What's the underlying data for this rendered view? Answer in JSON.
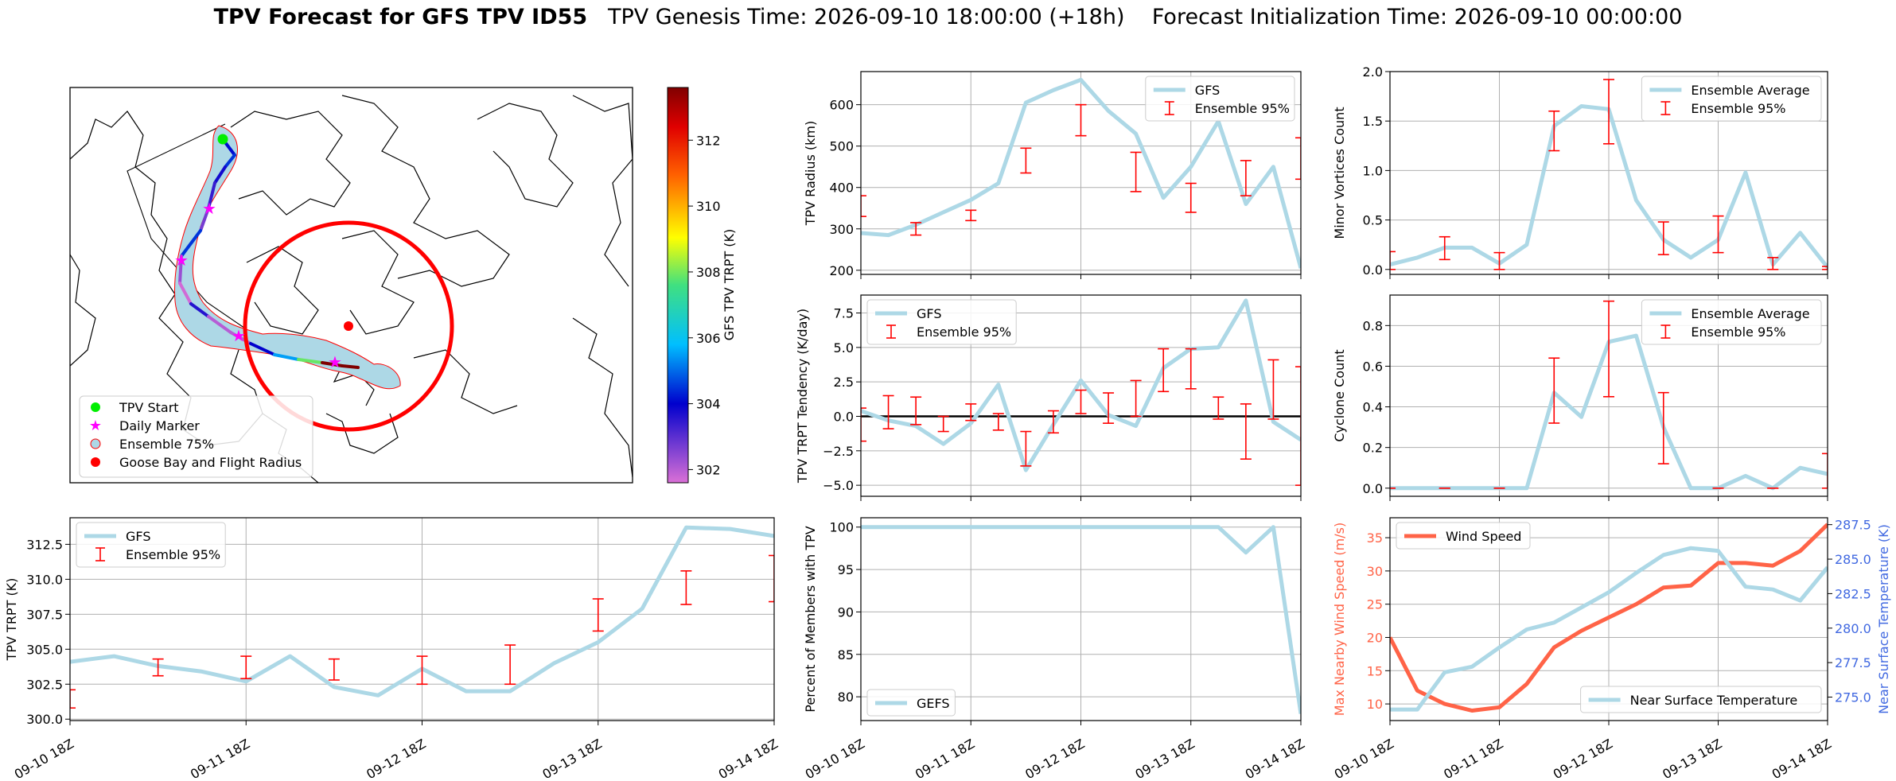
{
  "header": {
    "title_bold": "TPV Forecast for GFS TPV ID55",
    "genesis": "TPV Genesis Time: 2026-09-10 18:00:00 (+18h)",
    "init": "Forecast Initialization Time: 2026-09-10 00:00:00"
  },
  "colors": {
    "line": "#add8e6",
    "error": "#ff0000",
    "wind": "#ff6347",
    "temperature": "#4169e1",
    "zero_line": "#000000",
    "ensemble_fill": "#add8e6",
    "ensemble_edge": "#ff0000",
    "start_marker": "#00ff00",
    "daily_marker": "#ff00ff",
    "goose_bay": "#ff0000"
  },
  "time_ticks": [
    "09-10 18Z",
    "09-11 18Z",
    "09-12 18Z",
    "09-13 18Z",
    "09-14 18Z"
  ],
  "chart_data": [
    {
      "id": "map",
      "type": "map",
      "legend": [
        "TPV Start",
        "Daily Marker",
        "Ensemble 75%",
        "Goose Bay and Flight Radius"
      ],
      "colorbar": {
        "label": "GFS TPV TRPT (K)",
        "ticks": [
          302,
          304,
          306,
          308,
          310,
          312
        ],
        "range": [
          301.6,
          313.6
        ]
      },
      "track_trpt": [
        304.1,
        304.5,
        303.8,
        303.4,
        302.7,
        304.5,
        302.3,
        301.7,
        303.6,
        302.0,
        302.0,
        304.0,
        305.5,
        307.9,
        313.7,
        313.6,
        313.1
      ]
    },
    {
      "id": "radius",
      "type": "line",
      "ylabel": "TPV Radius (km)",
      "ylim": [
        190,
        680
      ],
      "yticks": [
        200,
        300,
        400,
        500,
        600
      ],
      "legend": [
        "GFS",
        "Ensemble 95%"
      ],
      "legend_position": "top-right",
      "series": [
        {
          "name": "GFS",
          "values": [
            290,
            285,
            310,
            340,
            370,
            410,
            605,
            635,
            660,
            585,
            530,
            375,
            450,
            560,
            360,
            450,
            205
          ]
        }
      ],
      "error_bars": [
        {
          "i": 0,
          "lo": 330,
          "hi": 380
        },
        {
          "i": 2,
          "lo": 285,
          "hi": 315
        },
        {
          "i": 4,
          "lo": 320,
          "hi": 345
        },
        {
          "i": 6,
          "lo": 435,
          "hi": 495
        },
        {
          "i": 8,
          "lo": 525,
          "hi": 600
        },
        {
          "i": 10,
          "lo": 390,
          "hi": 485
        },
        {
          "i": 12,
          "lo": 340,
          "hi": 410
        },
        {
          "i": 14,
          "lo": 380,
          "hi": 465
        },
        {
          "i": 16,
          "lo": 420,
          "hi": 520
        }
      ]
    },
    {
      "id": "minor",
      "type": "line",
      "ylabel": "Minor Vortices Count",
      "ylim": [
        -0.05,
        2.0
      ],
      "yticks": [
        "0.0",
        "0.5",
        "1.0",
        "1.5",
        "2.0"
      ],
      "legend": [
        "Ensemble Average",
        "Ensemble 95%"
      ],
      "legend_position": "top-right",
      "series": [
        {
          "name": "Ensemble Average",
          "values": [
            0.05,
            0.12,
            0.22,
            0.22,
            0.06,
            0.25,
            1.45,
            1.65,
            1.62,
            0.7,
            0.3,
            0.12,
            0.3,
            0.98,
            0.05,
            0.37,
            0.02
          ]
        }
      ],
      "error_bars": [
        {
          "i": 0,
          "lo": 0.0,
          "hi": 0.18
        },
        {
          "i": 2,
          "lo": 0.1,
          "hi": 0.33
        },
        {
          "i": 4,
          "lo": 0.0,
          "hi": 0.17
        },
        {
          "i": 6,
          "lo": 1.2,
          "hi": 1.6
        },
        {
          "i": 8,
          "lo": 1.27,
          "hi": 1.92
        },
        {
          "i": 10,
          "lo": 0.15,
          "hi": 0.48
        },
        {
          "i": 12,
          "lo": 0.17,
          "hi": 0.54
        },
        {
          "i": 14,
          "lo": 0.0,
          "hi": 0.12
        },
        {
          "i": 16,
          "lo": 0.0,
          "hi": 0.03
        }
      ]
    },
    {
      "id": "tendency",
      "type": "line",
      "ylabel": "TPV TRPT Tendency (K/day)",
      "ylim": [
        -5.8,
        8.8
      ],
      "yticks": [
        "−5.0",
        "−2.5",
        "0.0",
        "2.5",
        "5.0",
        "7.5"
      ],
      "legend": [
        "GFS",
        "Ensemble 95%"
      ],
      "legend_position": "top-left",
      "series": [
        {
          "name": "GFS",
          "values": [
            0.4,
            -0.3,
            -0.7,
            -2.0,
            -0.5,
            2.3,
            -3.9,
            -0.6,
            2.6,
            0.1,
            -0.7,
            3.5,
            4.9,
            5.0,
            8.4,
            -0.4,
            -1.7
          ]
        }
      ],
      "error_bars": [
        {
          "i": 0,
          "lo": -1.8,
          "hi": 0.6
        },
        {
          "i": 1,
          "lo": -0.9,
          "hi": 1.5
        },
        {
          "i": 2,
          "lo": -0.6,
          "hi": 1.4
        },
        {
          "i": 3,
          "lo": -1.1,
          "hi": 0.0
        },
        {
          "i": 4,
          "lo": -0.3,
          "hi": 0.9
        },
        {
          "i": 5,
          "lo": -1.0,
          "hi": 0.2
        },
        {
          "i": 6,
          "lo": -3.6,
          "hi": -1.1
        },
        {
          "i": 7,
          "lo": -1.2,
          "hi": 0.4
        },
        {
          "i": 8,
          "lo": 0.2,
          "hi": 1.9
        },
        {
          "i": 9,
          "lo": -0.5,
          "hi": 1.7
        },
        {
          "i": 10,
          "lo": 0.0,
          "hi": 2.6
        },
        {
          "i": 11,
          "lo": 1.8,
          "hi": 4.9
        },
        {
          "i": 12,
          "lo": 2.0,
          "hi": 4.9
        },
        {
          "i": 13,
          "lo": -0.2,
          "hi": 1.4
        },
        {
          "i": 14,
          "lo": -3.1,
          "hi": 0.9
        },
        {
          "i": 15,
          "lo": -0.2,
          "hi": 4.1
        },
        {
          "i": 16,
          "lo": -5.0,
          "hi": 3.6
        }
      ]
    },
    {
      "id": "cyclone",
      "type": "line",
      "ylabel": "Cyclone Count",
      "ylim": [
        -0.04,
        0.95
      ],
      "yticks": [
        "0.0",
        "0.2",
        "0.4",
        "0.6",
        "0.8"
      ],
      "legend": [
        "Ensemble Average",
        "Ensemble 95%"
      ],
      "legend_position": "top-right",
      "series": [
        {
          "name": "Ensemble Average",
          "values": [
            0,
            0,
            0,
            0,
            0,
            0,
            0.47,
            0.35,
            0.72,
            0.75,
            0.3,
            0,
            0,
            0.06,
            0,
            0.1,
            0.07
          ]
        }
      ],
      "error_bars": [
        {
          "i": 0,
          "lo": 0.0,
          "hi": 0.0
        },
        {
          "i": 2,
          "lo": 0.0,
          "hi": 0.0
        },
        {
          "i": 4,
          "lo": 0.0,
          "hi": 0.0
        },
        {
          "i": 6,
          "lo": 0.32,
          "hi": 0.64
        },
        {
          "i": 8,
          "lo": 0.45,
          "hi": 0.92
        },
        {
          "i": 10,
          "lo": 0.12,
          "hi": 0.47
        },
        {
          "i": 12,
          "lo": 0.0,
          "hi": 0.0
        },
        {
          "i": 14,
          "lo": 0.0,
          "hi": 0.0
        },
        {
          "i": 16,
          "lo": 0.0,
          "hi": 0.17
        }
      ]
    },
    {
      "id": "trpt",
      "type": "line",
      "ylabel": "TPV TRPT (K)",
      "ylim": [
        299.9,
        314.4
      ],
      "yticks": [
        "300.0",
        "302.5",
        "305.0",
        "307.5",
        "310.0",
        "312.5"
      ],
      "xticks": [
        "09-10 18Z",
        "09-11 18Z",
        "09-12 18Z",
        "09-13 18Z",
        "09-14 18Z"
      ],
      "legend": [
        "GFS",
        "Ensemble 95%"
      ],
      "legend_position": "top-left",
      "series": [
        {
          "name": "GFS",
          "values": [
            304.1,
            304.5,
            303.8,
            303.4,
            302.7,
            304.5,
            302.3,
            301.7,
            303.6,
            302.0,
            302.0,
            304.0,
            305.5,
            307.9,
            313.7,
            313.6,
            313.1
          ]
        }
      ],
      "error_bars": [
        {
          "i": 0,
          "lo": 300.8,
          "hi": 302.1
        },
        {
          "i": 2,
          "lo": 303.1,
          "hi": 304.3
        },
        {
          "i": 4,
          "lo": 302.9,
          "hi": 304.5
        },
        {
          "i": 6,
          "lo": 302.8,
          "hi": 304.3
        },
        {
          "i": 8,
          "lo": 302.5,
          "hi": 304.5
        },
        {
          "i": 10,
          "lo": 302.5,
          "hi": 305.3
        },
        {
          "i": 12,
          "lo": 306.3,
          "hi": 308.6
        },
        {
          "i": 14,
          "lo": 308.2,
          "hi": 310.6
        },
        {
          "i": 16,
          "lo": 308.4,
          "hi": 311.7
        }
      ]
    },
    {
      "id": "members",
      "type": "line",
      "ylabel": "Percent of Members with TPV",
      "ylim": [
        77.2,
        101.1
      ],
      "yticks": [
        80,
        85,
        90,
        95,
        100
      ],
      "xticks": [
        "09-10 18Z",
        "09-11 18Z",
        "09-12 18Z",
        "09-13 18Z",
        "09-14 18Z"
      ],
      "legend": [
        "GEFS"
      ],
      "legend_position": "bottom-left",
      "series": [
        {
          "name": "GEFS",
          "values": [
            100,
            100,
            100,
            100,
            100,
            100,
            100,
            100,
            100,
            100,
            100,
            100,
            100,
            100,
            97,
            100,
            78
          ]
        }
      ]
    },
    {
      "id": "wind_temp",
      "type": "line",
      "ylabel": "Max Nearby Wind Speed (m/s)",
      "ylim": [
        7.5,
        38.0
      ],
      "yticks": [
        10,
        15,
        20,
        25,
        30,
        35
      ],
      "y2label": "Near Surface Temperature (K)",
      "y2lim": [
        273.3,
        288.0
      ],
      "y2ticks": [
        "275.0",
        "277.5",
        "280.0",
        "282.5",
        "285.0",
        "287.5"
      ],
      "xticks": [
        "09-10 18Z",
        "09-11 18Z",
        "09-12 18Z",
        "09-13 18Z",
        "09-14 18Z"
      ],
      "legend": [
        "Wind Speed",
        "Near Surface Temperature"
      ],
      "series": [
        {
          "name": "Wind Speed",
          "axis": "left",
          "values": [
            20.0,
            12.0,
            10.0,
            9.0,
            9.5,
            13.0,
            18.5,
            21.0,
            23.0,
            25.0,
            27.5,
            27.8,
            31.2,
            31.2,
            30.8,
            33.0,
            37.0
          ]
        },
        {
          "name": "Near Surface Temperature",
          "axis": "right",
          "values": [
            274.1,
            274.1,
            276.8,
            277.2,
            278.6,
            279.9,
            280.4,
            281.5,
            282.6,
            284.0,
            285.3,
            285.8,
            285.6,
            283.0,
            282.8,
            282.0,
            284.4
          ]
        }
      ]
    }
  ]
}
